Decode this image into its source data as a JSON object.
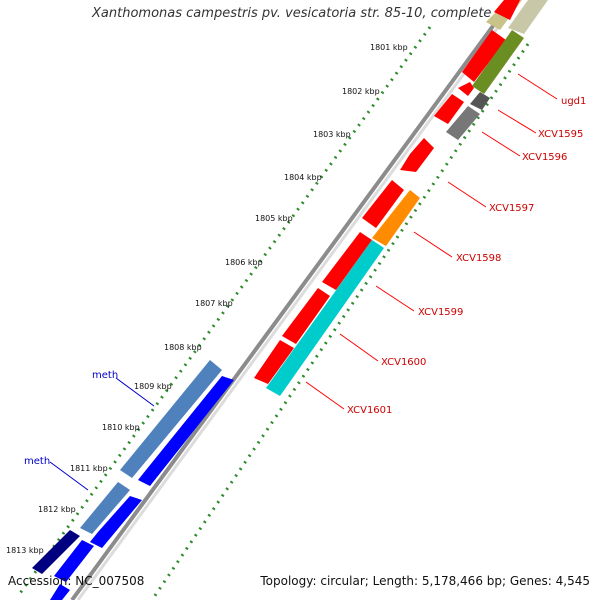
{
  "title": "Xanthomonas campestris pv. vesicatoria str. 85-10, complete ...",
  "accession": "Accession: NC_007508",
  "summary": "Topology: circular; Length: 5,178,466 bp; Genes: 4,545",
  "colors": {
    "ruler": "#2e8b2e",
    "backbone": "#8c8c8c",
    "gene_red": "#ff0000",
    "gene_blue": "#0000ff",
    "meth_steel": "#4f81bd",
    "orange": "#ff8c00",
    "cyan": "#00cccc",
    "olive": "#6b8e23",
    "gray": "#666666",
    "label_red": "#cc0000",
    "label_blue": "#0000cc"
  },
  "ticks": [
    {
      "label": "1801 kbp"
    },
    {
      "label": "1802 kbp"
    },
    {
      "label": "1803 kbp"
    },
    {
      "label": "1804 kbp"
    },
    {
      "label": "1805 kbp"
    },
    {
      "label": "1806 kbp"
    },
    {
      "label": "1807 kbp"
    },
    {
      "label": "1808 kbp"
    },
    {
      "label": "1809 kbp"
    },
    {
      "label": "1810 kbp"
    },
    {
      "label": "1811 kbp"
    },
    {
      "label": "1812 kbp"
    },
    {
      "label": "1813 kbp"
    }
  ],
  "gene_labels": [
    {
      "label": "ugd1"
    },
    {
      "label": "XCV1595"
    },
    {
      "label": "XCV1596"
    },
    {
      "label": "XCV1597"
    },
    {
      "label": "XCV1598"
    },
    {
      "label": "XCV1599"
    },
    {
      "label": "XCV1600"
    },
    {
      "label": "XCV1601"
    }
  ],
  "feature_labels": [
    {
      "label": "meth"
    },
    {
      "label": "meth"
    }
  ]
}
